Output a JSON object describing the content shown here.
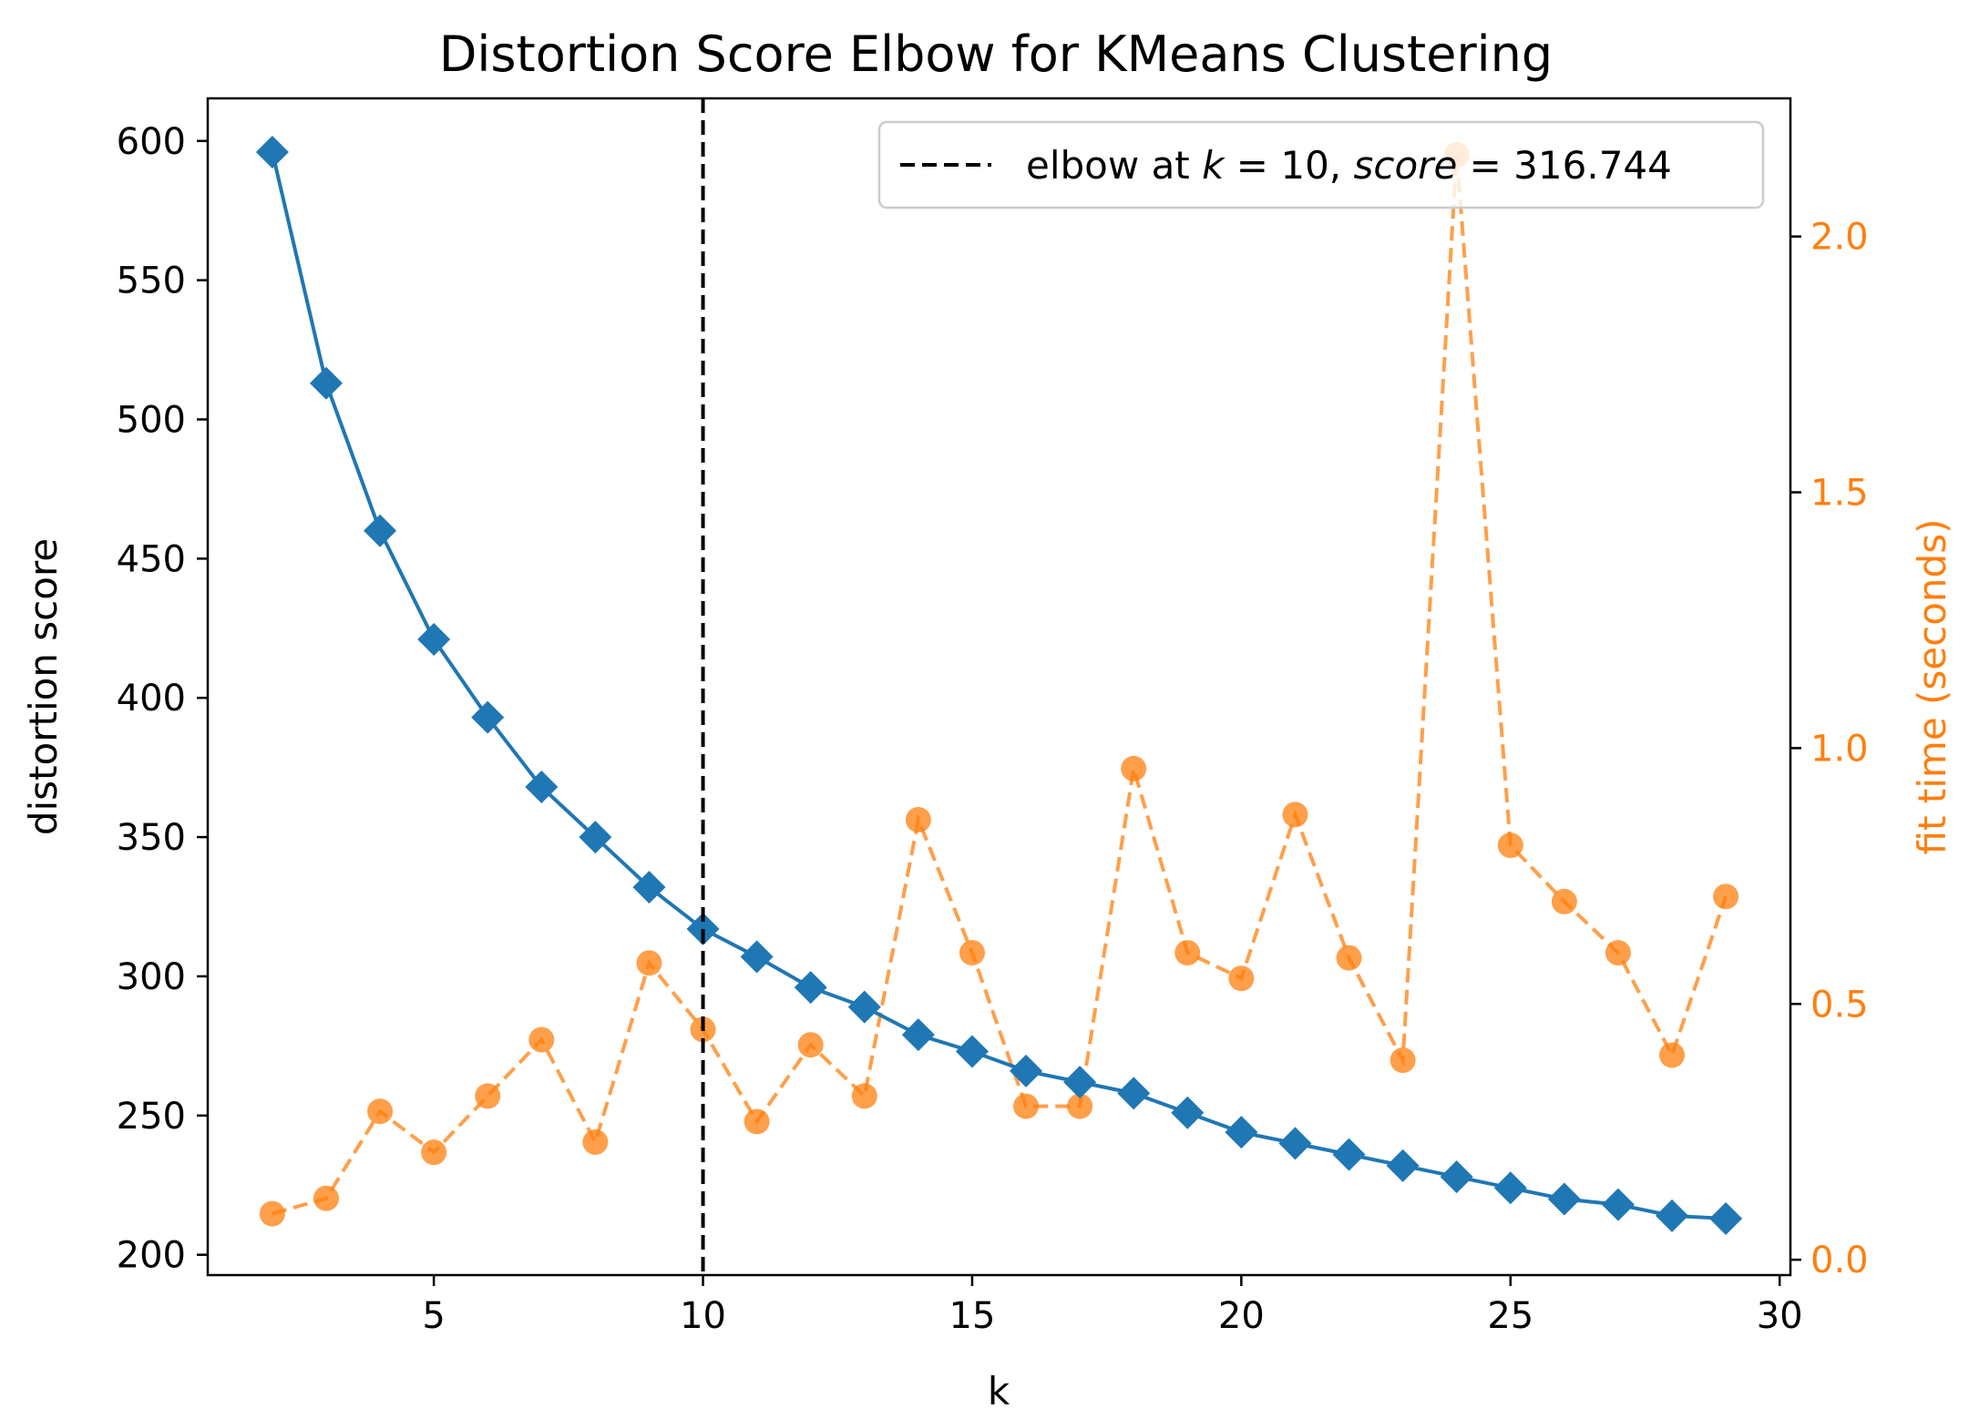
{
  "chart_data": {
    "type": "line",
    "title": "Distortion Score Elbow for KMeans Clustering",
    "xlabel": "k",
    "ylabel": "distortion score",
    "y2label": "fit time (seconds)",
    "xlim": [
      0.8,
      30.2
    ],
    "ylim": [
      192.7,
      615.3
    ],
    "y2lim": [
      -0.03,
      2.27
    ],
    "x_ticks": [
      "5",
      "10",
      "15",
      "20",
      "25",
      "30"
    ],
    "y_ticks": [
      "200",
      "250",
      "300",
      "350",
      "400",
      "450",
      "500",
      "550",
      "600"
    ],
    "y2_ticks": [
      "0.0",
      "0.5",
      "1.0",
      "1.5",
      "2.0"
    ],
    "x": [
      2,
      3,
      4,
      5,
      6,
      7,
      8,
      9,
      10,
      11,
      12,
      13,
      14,
      15,
      16,
      17,
      18,
      19,
      20,
      21,
      22,
      23,
      24,
      25,
      26,
      27,
      28,
      29
    ],
    "series": [
      {
        "name": "distortion score",
        "axis": "left",
        "color": "#1f77b4",
        "marker": "diamond",
        "values": [
          596,
          513,
          460,
          421,
          393,
          368,
          350,
          332,
          317,
          307,
          296,
          289,
          279,
          273,
          266,
          262,
          258,
          251,
          244,
          240,
          236,
          232,
          228,
          224,
          220,
          218,
          214,
          213
        ]
      },
      {
        "name": "fit time (seconds)",
        "axis": "right",
        "color": "#ff7f0e",
        "marker": "circle",
        "values": [
          0.09,
          0.12,
          0.29,
          0.21,
          0.32,
          0.43,
          0.23,
          0.58,
          0.45,
          0.27,
          0.42,
          0.32,
          0.86,
          0.6,
          0.3,
          0.3,
          0.96,
          0.6,
          0.55,
          0.87,
          0.59,
          0.39,
          2.16,
          0.81,
          0.7,
          0.6,
          0.4,
          0.71
        ]
      }
    ],
    "elbow": {
      "k": 10,
      "score": 316.744,
      "legend_prefix": "elbow at ",
      "legend_k_label": "k",
      "legend_k_value": " = 10, ",
      "legend_score_label": "score",
      "legend_score_value": " = 316.744",
      "color": "#000000"
    },
    "legend_position": "top-right",
    "grid": false
  }
}
